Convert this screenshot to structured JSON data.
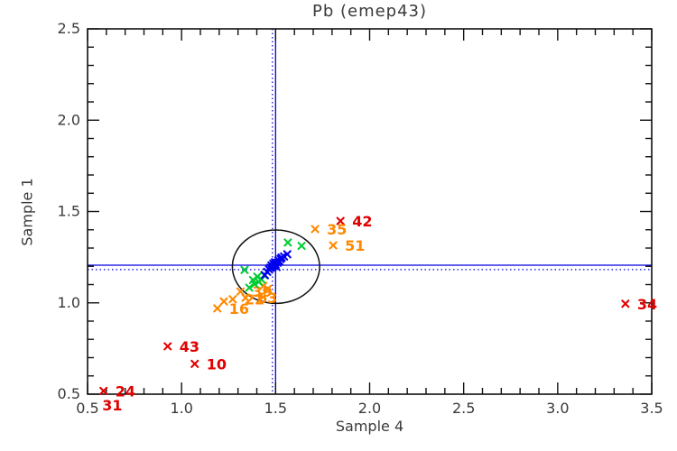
{
  "title": "Pb (emep43)",
  "colors": {
    "red": "#e00000",
    "orange": "#ff8800",
    "green": "#00cc33",
    "blue": "#0000ee",
    "crosshair": "#0000dd",
    "ellipse": "#111111",
    "axis": "#111111",
    "text": "#3a3a3a"
  },
  "chart_data": {
    "type": "scatter",
    "title": "Pb (emep43)",
    "xlabel": "Sample 4",
    "ylabel": "Sample 1",
    "xlim": [
      0.5,
      3.5
    ],
    "ylim": [
      0.5,
      2.5
    ],
    "xticks": [
      0.5,
      1.0,
      1.5,
      2.0,
      2.5,
      3.0,
      3.5
    ],
    "yticks": [
      0.5,
      1.0,
      1.5,
      2.0,
      2.5
    ],
    "minor_tick_step": 0.1,
    "grid": false,
    "legend": "none",
    "crosshair": {
      "solid_x": 1.5,
      "solid_y": 1.206,
      "dotted_x": 1.483,
      "dotted_y": 1.182
    },
    "ellipse": {
      "cx": 1.502,
      "cy": 1.198,
      "rx": 0.232,
      "ry": 0.201
    },
    "series": [
      {
        "name": "red-outliers",
        "color": "#e00000",
        "points": [
          {
            "x": 1.845,
            "y": 1.448,
            "label": "42"
          },
          {
            "x": 3.36,
            "y": 0.995,
            "label": "34"
          },
          {
            "x": 0.926,
            "y": 0.762,
            "label": "43"
          },
          {
            "x": 1.07,
            "y": 0.666,
            "label": "10"
          },
          {
            "x": 0.585,
            "y": 0.518,
            "label": "24"
          },
          {
            "x": 0.578,
            "y": 0.412,
            "label": "31",
            "marker": false
          }
        ]
      },
      {
        "name": "orange-points",
        "color": "#ff8800",
        "points": [
          {
            "x": 1.71,
            "y": 1.404,
            "label": "35"
          },
          {
            "x": 1.806,
            "y": 1.315,
            "label": "51"
          },
          {
            "x": 1.313,
            "y": 1.062,
            "label": "39"
          },
          {
            "x": 1.272,
            "y": 1.02,
            "label": "22"
          },
          {
            "x": 1.34,
            "y": 1.028,
            "label": "63"
          },
          {
            "x": 1.19,
            "y": 0.97,
            "label": "16"
          },
          {
            "x": 1.225,
            "y": 1.008
          },
          {
            "x": 1.435,
            "y": 1.093
          },
          {
            "x": 1.458,
            "y": 1.076
          }
        ]
      },
      {
        "name": "green-points",
        "color": "#00cc33",
        "points": [
          {
            "x": 1.335,
            "y": 1.18
          },
          {
            "x": 1.565,
            "y": 1.33
          },
          {
            "x": 1.638,
            "y": 1.312
          },
          {
            "x": 1.38,
            "y": 1.125
          },
          {
            "x": 1.403,
            "y": 1.143
          },
          {
            "x": 1.425,
            "y": 1.128
          },
          {
            "x": 1.388,
            "y": 1.103
          },
          {
            "x": 1.41,
            "y": 1.115
          },
          {
            "x": 1.36,
            "y": 1.083
          },
          {
            "x": 1.44,
            "y": 1.152
          }
        ]
      },
      {
        "name": "blue-cluster",
        "color": "#0000ee",
        "points": [
          {
            "x": 1.443,
            "y": 1.152
          },
          {
            "x": 1.455,
            "y": 1.17
          },
          {
            "x": 1.465,
            "y": 1.183
          },
          {
            "x": 1.472,
            "y": 1.192
          },
          {
            "x": 1.478,
            "y": 1.205
          },
          {
            "x": 1.483,
            "y": 1.193
          },
          {
            "x": 1.488,
            "y": 1.215
          },
          {
            "x": 1.492,
            "y": 1.202
          },
          {
            "x": 1.497,
            "y": 1.222
          },
          {
            "x": 1.5,
            "y": 1.21
          },
          {
            "x": 1.505,
            "y": 1.196
          },
          {
            "x": 1.51,
            "y": 1.22
          },
          {
            "x": 1.515,
            "y": 1.233
          },
          {
            "x": 1.52,
            "y": 1.226
          },
          {
            "x": 1.526,
            "y": 1.24
          },
          {
            "x": 1.532,
            "y": 1.248
          },
          {
            "x": 1.545,
            "y": 1.254
          },
          {
            "x": 1.562,
            "y": 1.266
          }
        ]
      }
    ]
  }
}
